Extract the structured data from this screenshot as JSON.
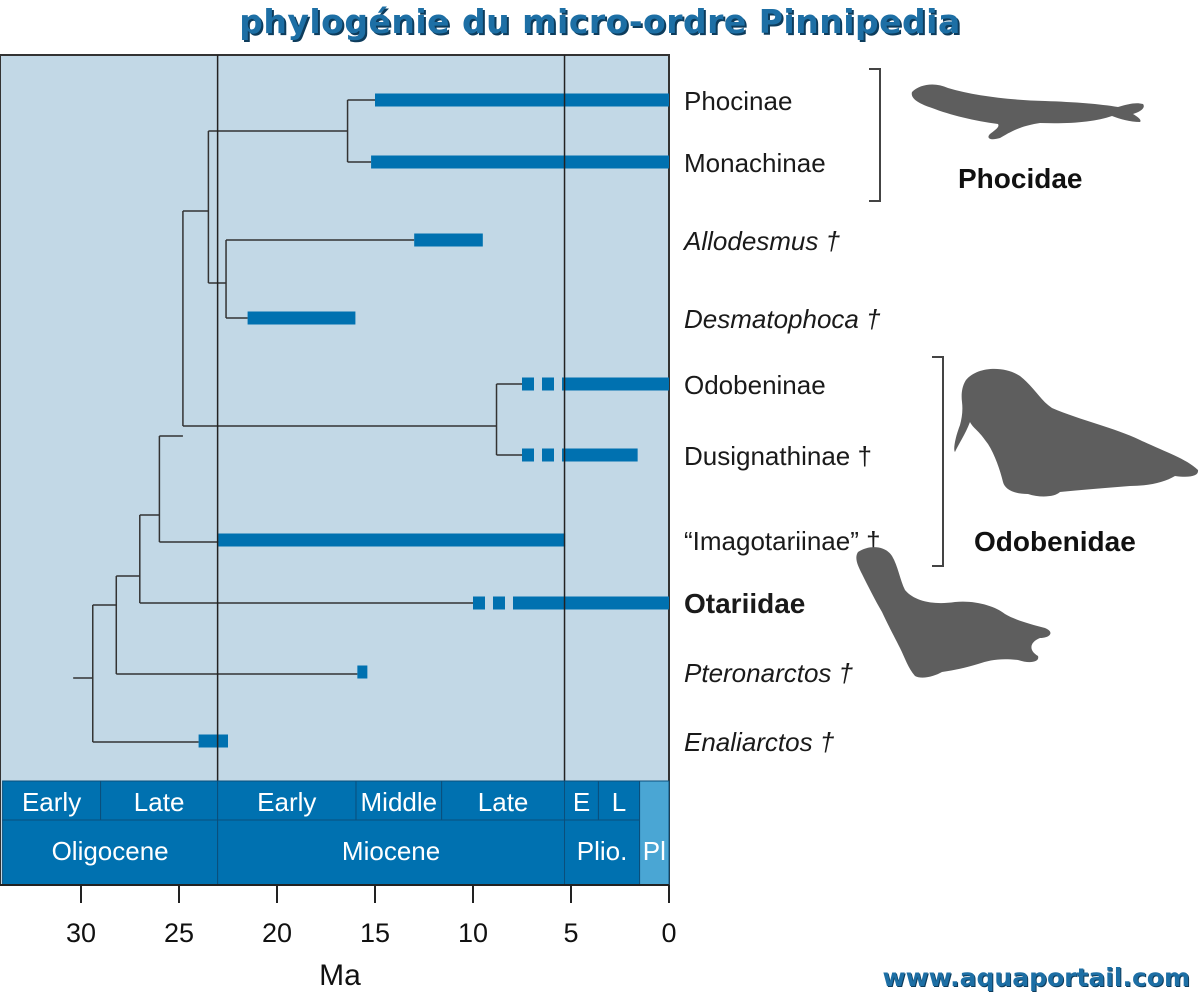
{
  "title": "phylogénie du micro-ordre Pinnipedia",
  "watermark": "www.aquaportail.com",
  "colors": {
    "panel_bg": "#c2d8e6",
    "bar": "#0071b0",
    "band": "#0071b0",
    "band_light": "#4aa6d4",
    "tree_line": "#333333",
    "silhouette": "#5e5e5e"
  },
  "axis": {
    "title": "Ma",
    "ticks": [
      "30",
      "25",
      "20",
      "15",
      "10",
      "5",
      "0"
    ],
    "tick_values": [
      30,
      25,
      20,
      15,
      10,
      5,
      0
    ],
    "range": [
      34,
      0
    ]
  },
  "time_scale": {
    "epochs": [
      {
        "label": "Oligocene",
        "start": 34,
        "end": 23.03
      },
      {
        "label": "Miocene",
        "start": 23.03,
        "end": 5.33
      },
      {
        "label": "Plio.",
        "start": 5.33,
        "end": 1.5
      },
      {
        "label": "Pl",
        "start": 1.5,
        "end": 0
      }
    ],
    "subdivisions": [
      {
        "label": "Early",
        "start": 34,
        "end": 29
      },
      {
        "label": "Late",
        "start": 29,
        "end": 23.03
      },
      {
        "label": "Early",
        "start": 23.03,
        "end": 15.97
      },
      {
        "label": "Middle",
        "start": 15.97,
        "end": 11.6
      },
      {
        "label": "Late",
        "start": 11.6,
        "end": 5.33
      },
      {
        "label": "E",
        "start": 5.33,
        "end": 3.6
      },
      {
        "label": "L",
        "start": 3.6,
        "end": 1.5
      }
    ],
    "boundaries": [
      23.03,
      5.33
    ]
  },
  "taxa": [
    {
      "label": "Phocinae",
      "style": "normal",
      "range": [
        15,
        0
      ]
    },
    {
      "label": "Monachinae",
      "style": "normal",
      "range": [
        15.2,
        0
      ]
    },
    {
      "label": "Allodesmus †",
      "style": "italic",
      "range": [
        13,
        9.5
      ]
    },
    {
      "label": "Desmatophoca †",
      "style": "italic",
      "range": [
        21.5,
        16
      ]
    },
    {
      "label": "Odobeninae",
      "style": "normal",
      "range": [
        7.5,
        0
      ],
      "dashed_until": 5.3
    },
    {
      "label": "Dusignathinae †",
      "style": "normal",
      "range": [
        7.5,
        1.6
      ],
      "dashed_until": 5.3
    },
    {
      "label": "“Imagotariinae” †",
      "style": "normal",
      "range": [
        23,
        5.3
      ]
    },
    {
      "label": "Otariidae",
      "style": "bold",
      "range": [
        10,
        0
      ],
      "dashed_until": 7.5
    },
    {
      "label": "Pteronarctos †",
      "style": "italic",
      "range": [
        15.9,
        15.5
      ]
    },
    {
      "label": "Enaliarctos †",
      "style": "italic",
      "range": [
        24,
        22.5
      ]
    }
  ],
  "families": [
    {
      "label": "Phocidae",
      "taxa": [
        "Phocinae",
        "Monachinae"
      ],
      "icon": "seal-silhouette-icon"
    },
    {
      "label": "Odobenidae",
      "taxa": [
        "Odobeninae",
        "Dusignathinae †",
        "“Imagotariinae” †"
      ],
      "icon": "walrus-silhouette-icon"
    }
  ],
  "extra_icons": [
    "sea-lion-silhouette-icon"
  ]
}
